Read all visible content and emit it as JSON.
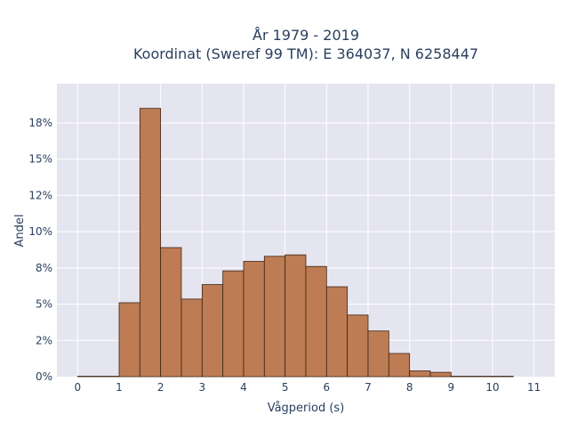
{
  "chart_data": {
    "type": "bar",
    "title_line1": "År 1979 - 2019",
    "title_line2": "Koordinat (Sweref 99 TM): E 364037, N 6258447",
    "xlabel": "Vågperiod (s)",
    "ylabel": "Andel",
    "bin_width": 0.5,
    "bins": [
      {
        "x0": 0.0,
        "x1": 0.5,
        "value": 0.0
      },
      {
        "x0": 0.5,
        "x1": 1.0,
        "value": 0.0
      },
      {
        "x0": 1.0,
        "x1": 1.5,
        "value": 5.1
      },
      {
        "x0": 1.5,
        "x1": 2.0,
        "value": 18.5
      },
      {
        "x0": 2.0,
        "x1": 2.5,
        "value": 8.9
      },
      {
        "x0": 2.5,
        "x1": 3.0,
        "value": 5.35
      },
      {
        "x0": 3.0,
        "x1": 3.5,
        "value": 6.35
      },
      {
        "x0": 3.5,
        "x1": 4.0,
        "value": 7.3
      },
      {
        "x0": 4.0,
        "x1": 4.5,
        "value": 7.95
      },
      {
        "x0": 4.5,
        "x1": 5.0,
        "value": 8.3
      },
      {
        "x0": 5.0,
        "x1": 5.5,
        "value": 8.4
      },
      {
        "x0": 5.5,
        "x1": 6.0,
        "value": 7.6
      },
      {
        "x0": 6.0,
        "x1": 6.5,
        "value": 6.2
      },
      {
        "x0": 6.5,
        "x1": 7.0,
        "value": 4.25
      },
      {
        "x0": 7.0,
        "x1": 7.5,
        "value": 3.15
      },
      {
        "x0": 7.5,
        "x1": 8.0,
        "value": 1.6
      },
      {
        "x0": 8.0,
        "x1": 8.5,
        "value": 0.4
      },
      {
        "x0": 8.5,
        "x1": 9.0,
        "value": 0.3
      },
      {
        "x0": 9.0,
        "x1": 9.5,
        "value": 0.03
      },
      {
        "x0": 9.5,
        "x1": 10.0,
        "value": 0.02
      },
      {
        "x0": 10.0,
        "x1": 10.5,
        "value": 0.01
      }
    ],
    "xlim": [
      -0.5,
      11.5
    ],
    "ylim": [
      0,
      20.2
    ],
    "x_ticks": [
      0,
      1,
      2,
      3,
      4,
      5,
      6,
      7,
      8,
      9,
      10,
      11
    ],
    "y_ticks": [
      {
        "value": 0,
        "label": "0%"
      },
      {
        "value": 2.5,
        "label": "2%"
      },
      {
        "value": 5,
        "label": "5%"
      },
      {
        "value": 7.5,
        "label": "8%"
      },
      {
        "value": 10,
        "label": "10%"
      },
      {
        "value": 12.5,
        "label": "12%"
      },
      {
        "value": 15,
        "label": "15%"
      },
      {
        "value": 17.5,
        "label": "18%"
      }
    ],
    "grid": true,
    "colors": {
      "bar_fill": "#bd7c54",
      "bar_stroke": "#3d2414",
      "plot_bg": "#e5e5f0",
      "grid": "#ffffff",
      "text": "#2a3f5f"
    }
  }
}
